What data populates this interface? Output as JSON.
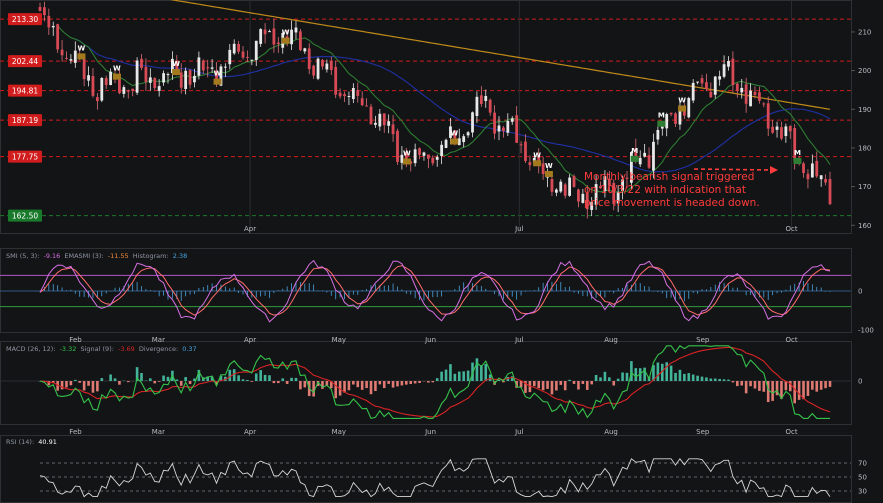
{
  "chart_data": {
    "type": "candlestick",
    "price": {
      "y_ticks": [
        "210",
        "200",
        "190",
        "180",
        "170",
        "160"
      ],
      "y_range": [
        158,
        218
      ],
      "level_labels": [
        "213.30",
        "202.44",
        "194.81",
        "187.19",
        "177.75",
        "162.50"
      ],
      "level_values": [
        213.3,
        202.44,
        194.81,
        187.19,
        177.75,
        162.5
      ],
      "level_colors": [
        "#d01c1c",
        "#d01c1c",
        "#d01c1c",
        "#d01c1c",
        "#d01c1c",
        "#1a7a2c"
      ],
      "month_labels": [
        "Apr",
        "Jul",
        "Oct"
      ],
      "month_dates": [
        "2022-04-01",
        "2022-07-01",
        "2022-10-01"
      ],
      "signals": [
        {
          "label": "W",
          "color": "#ffffff",
          "date": "2022-02-15"
        },
        {
          "label": "W",
          "color": "#ffffff",
          "date": "2022-02-03"
        },
        {
          "label": "W",
          "color": "#ffffff",
          "date": "2022-03-07"
        },
        {
          "label": "W",
          "color": "#ffffff",
          "date": "2022-03-21"
        },
        {
          "label": "W",
          "color": "#ffffff",
          "date": "2022-04-13"
        },
        {
          "label": "W",
          "color": "#ffffff",
          "date": "2022-05-24"
        },
        {
          "label": "W",
          "color": "#ffffff",
          "date": "2022-06-09"
        },
        {
          "label": "W",
          "color": "#ffffff",
          "date": "2022-07-11"
        },
        {
          "label": "W",
          "color": "#ffffff",
          "date": "2022-07-07"
        },
        {
          "label": "M",
          "color": "#ffffff",
          "date": "2022-08-09"
        },
        {
          "label": "M",
          "color": "#ffffff",
          "date": "2022-08-18"
        },
        {
          "label": "W",
          "color": "#ffffff",
          "date": "2022-08-25"
        },
        {
          "label": "M",
          "color": "#ffffff",
          "date": "2022-10-03"
        }
      ],
      "annotation": "Monthly bearish signal triggered on 10/3/22 with indication that price movement is headed down.",
      "annotation_lines": [
        "Monthly bearish signal triggered",
        "on 10/3/22 with indication that",
        "price movement is headed down."
      ],
      "annotation_color": "#ff3b3b",
      "ma_colors": {
        "fast": "#2e7d32",
        "mid": "#1f2f9c",
        "slow": "#c08a1a"
      }
    },
    "smi": {
      "label_name": "SMI (5, 3):",
      "label_smi": "-9.16",
      "label_ema_name": "EMASMI (3):",
      "label_ema": "-11.55",
      "label_hist_name": "Histogram:",
      "label_hist": "2.38",
      "y_ticks": [
        "0",
        "-100"
      ],
      "month_labels": [
        "Feb",
        "Mar",
        "Apr",
        "May",
        "Jun",
        "Jul",
        "Aug",
        "Sep",
        "Oct"
      ],
      "colors": {
        "smi": "#d670e3",
        "ema": "#ff6b6b",
        "hist": "#4aa3df",
        "upper": "#b455c9",
        "lower": "#2e9c3f"
      }
    },
    "macd": {
      "label_name": "MACD (26, 12):",
      "label_macd": "-3.32",
      "label_signal_name": "Signal (9):",
      "label_signal": "-3.69",
      "label_div_name": "Divergence:",
      "label_div": "0.37",
      "y_ticks": [
        "0"
      ],
      "month_labels": [
        "Feb",
        "Mar",
        "Apr",
        "May",
        "Jun",
        "Jul",
        "Aug",
        "Sep",
        "Oct"
      ],
      "colors": {
        "macd": "#35c24a",
        "signal": "#d92424",
        "pos": "#43b39a",
        "neg": "#e07b74"
      }
    },
    "rsi": {
      "label_name": "RSI (14):",
      "label_value": "40.91",
      "y_ticks": [
        "70",
        "50",
        "30"
      ],
      "colors": {
        "line": "#d8d8d8",
        "hi": "#b455c9"
      }
    }
  }
}
